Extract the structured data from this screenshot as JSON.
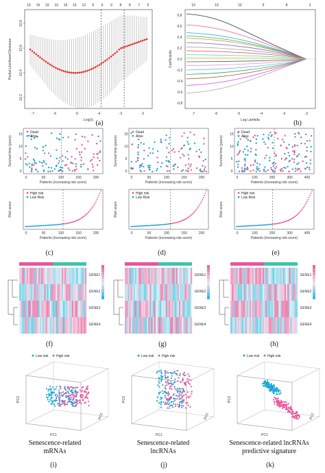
{
  "labels": {
    "a": "(a)",
    "b": "(b)",
    "c": "(c)",
    "d": "(d)",
    "e": "(e)",
    "f": "(f)",
    "g": "(g)",
    "h": "(h)",
    "i": "(i)",
    "j": "(j)",
    "k": "(k)"
  },
  "captions": {
    "i": "Senescence-related mRNAs",
    "j": "Senescence-related lncRNAs",
    "k": "Senescence-related lncRNAs predictive signature"
  },
  "colors": {
    "dead": "#e8559a",
    "alive": "#1aa7d6",
    "high": "#e8559a",
    "low": "#1aa7d6",
    "cv": "#e0261f",
    "heat_high": "#e86aa0",
    "heat_low": "#2fb7d9"
  },
  "panel_a": {
    "top_ticks": [
      "19",
      "19",
      "19",
      "19",
      "19",
      "16",
      "12",
      "9",
      "9",
      "9",
      "8",
      "8",
      "7",
      "5"
    ],
    "ylabel": "Partial Likelihood Deviance",
    "xlabel": "Log(λ)",
    "yticks": [
      "10.8",
      "10.6",
      "10.4",
      "10.2"
    ],
    "xticks": [
      "-7",
      "-6",
      "-5",
      "-4",
      "-3",
      "-2"
    ]
  },
  "panel_b": {
    "top_ticks": [
      "19",
      "19",
      "16",
      "9",
      "8",
      "3"
    ],
    "ylabel": "Coefficients",
    "xlabel": "Log Lambda",
    "yticks": [
      "0.8",
      "0.6",
      "0.4",
      "0.2",
      "0.0",
      "-0.2",
      "-0.4",
      "-0.6",
      "-0.8"
    ],
    "xticks": [
      "-7",
      "-6",
      "-5",
      "-4",
      "-3",
      "-2"
    ]
  },
  "survival": {
    "ylabel": "Survival time (years)",
    "xlabel": "Patients (increasing risk score)",
    "legend": [
      "Dead",
      "Alive"
    ],
    "c_xticks": [
      "0",
      "50",
      "100",
      "150",
      "200"
    ],
    "d_xticks": [
      "0",
      "50",
      "100",
      "150",
      "200"
    ],
    "e_xticks": [
      "0",
      "100",
      "200",
      "300",
      "400"
    ],
    "yticks": [
      "0",
      "5",
      "10",
      "15"
    ]
  },
  "risk": {
    "ylabel": "Risk score",
    "xlabel": "Patients (increasing risk score)",
    "legend": [
      "High risk",
      "Low Risk"
    ],
    "c_xticks": [
      "0",
      "50",
      "100",
      "150",
      "200"
    ],
    "d_xticks": [
      "0",
      "50",
      "100",
      "150",
      "200"
    ],
    "e_xticks": [
      "0",
      "100",
      "200",
      "300",
      "400"
    ]
  },
  "heatmap": {
    "f_genes": [
      "GENE1",
      "GENE2",
      "GENE3",
      "GENE4"
    ],
    "g_genes": [
      "GENE1",
      "GENE2",
      "GENE3",
      "GENE4"
    ],
    "h_genes": [
      "GENE1",
      "GENE2",
      "GENE3",
      "GENE4"
    ]
  },
  "pca": {
    "legend": [
      "Low risk",
      "High risk"
    ],
    "x": "PC1",
    "y": "PC2",
    "z": "PC3"
  }
}
